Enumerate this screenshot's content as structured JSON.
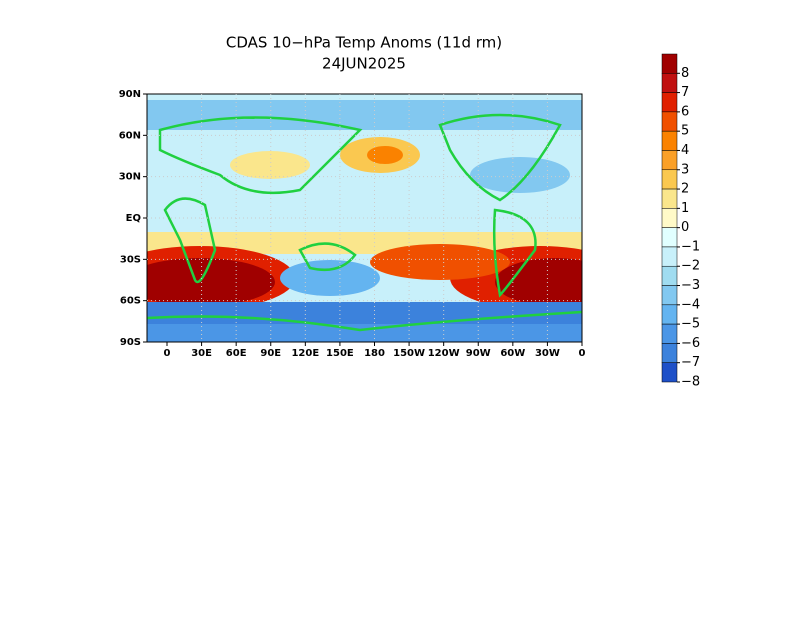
{
  "map": {
    "title": [
      "CDAS 10−hPa Temp Anoms (11d rm)",
      "24JUN2025"
    ],
    "lat_ticks": [
      {
        "value": 90,
        "label": "90N"
      },
      {
        "value": 60,
        "label": "60N"
      },
      {
        "value": 30,
        "label": "30N"
      },
      {
        "value": 0,
        "label": "EQ"
      },
      {
        "value": -30,
        "label": "30S"
      },
      {
        "value": -60,
        "label": "60S"
      },
      {
        "value": -90,
        "label": "90S"
      }
    ],
    "lon_ticks": [
      {
        "value": 0,
        "label": "0"
      },
      {
        "value": 30,
        "label": "30E"
      },
      {
        "value": 60,
        "label": "60E"
      },
      {
        "value": 90,
        "label": "90E"
      },
      {
        "value": 120,
        "label": "120E"
      },
      {
        "value": 150,
        "label": "150E"
      },
      {
        "value": 180,
        "label": "180"
      },
      {
        "value": 210,
        "label": "150W"
      },
      {
        "value": 240,
        "label": "120W"
      },
      {
        "value": 270,
        "label": "90W"
      },
      {
        "value": 300,
        "label": "60W"
      },
      {
        "value": 330,
        "label": "30W"
      },
      {
        "value": 360,
        "label": "0"
      }
    ],
    "colorbar": {
      "levels": [
        8,
        7,
        6,
        5,
        4,
        3,
        2,
        1,
        0,
        {
          "value": -1,
          "label": "−1"
        },
        {
          "value": -2,
          "label": "−2"
        },
        {
          "value": -3,
          "label": "−3"
        },
        {
          "value": -4,
          "label": "−4"
        },
        {
          "value": -5,
          "label": "−5"
        },
        {
          "value": -6,
          "label": "−6"
        },
        {
          "value": -7,
          "label": "−7"
        },
        {
          "value": -8,
          "label": "−8"
        }
      ],
      "colors": [
        "#a00000",
        "#c01010",
        "#e02000",
        "#f05000",
        "#fa8200",
        "#faa028",
        "#fac850",
        "#fae68c",
        "#fffac8",
        "#e1ffff",
        "#c8f0fa",
        "#a0dcf0",
        "#82c8f0",
        "#64b4f0",
        "#4b96e6",
        "#3c82dc",
        "#1e50c8"
      ]
    }
  }
}
